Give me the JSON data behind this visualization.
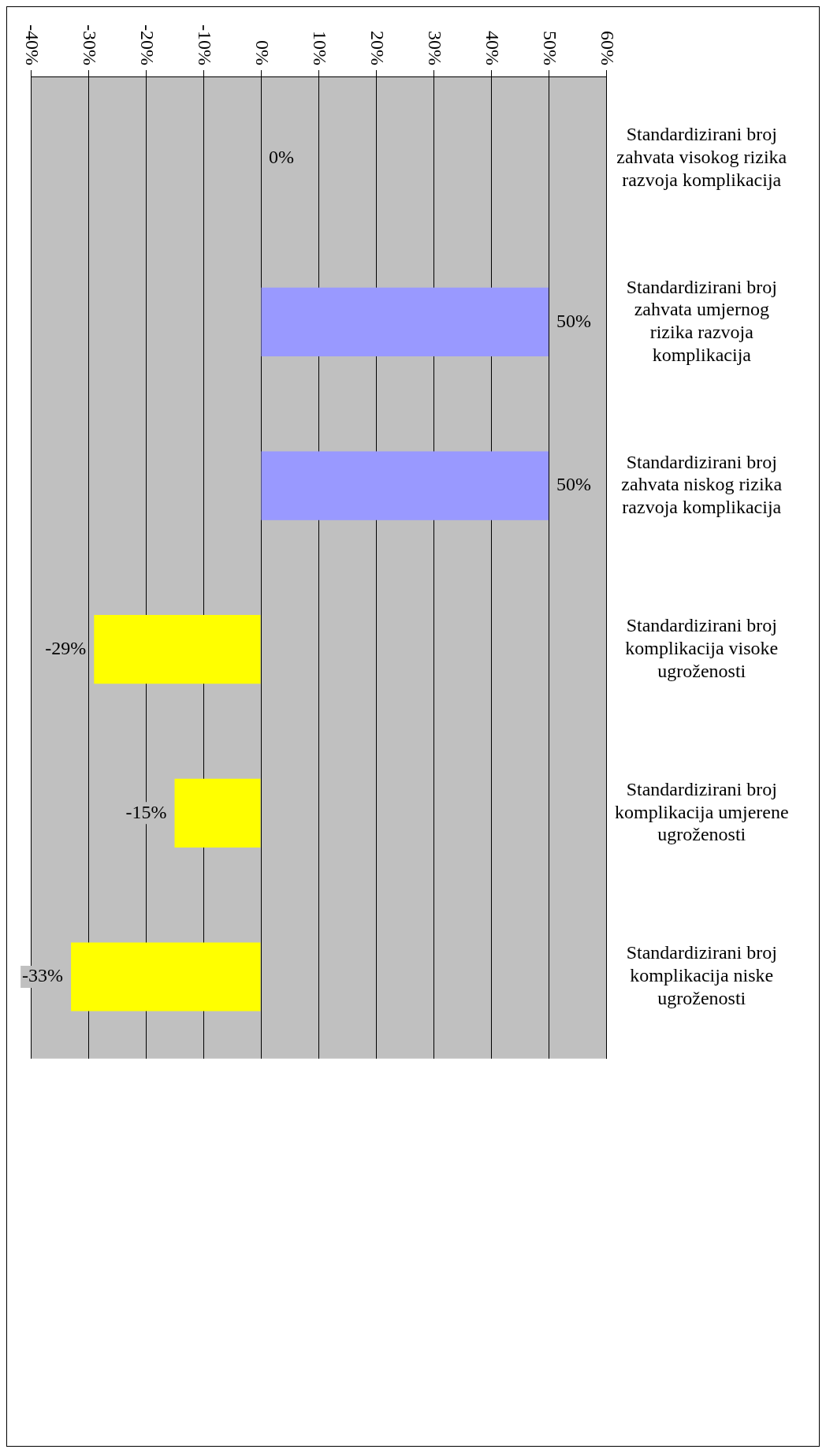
{
  "chart_data": {
    "type": "bar",
    "orientation": "horizontal",
    "categories": [
      "Standardizirani broj zahvata visokog rizika razvoja komplikacija",
      "Standardizirani broj zahvata umjernog rizika razvoja komplikacija",
      "Standardizirani broj zahvata niskog rizika razvoja komplikacija",
      "Standardizirani broj komplikacija visoke ugroženosti",
      "Standardizirani broj komplikacija umjerene ugroženosti",
      "Standardizirani broj komplikacija niske ugroženosti"
    ],
    "values": [
      0,
      50,
      50,
      -29,
      -15,
      -33
    ],
    "colors": [
      "#9999ff",
      "#9999ff",
      "#9999ff",
      "#ffff00",
      "#ffff00",
      "#ffff00"
    ],
    "value_labels": [
      "0%",
      "50%",
      "50%",
      "-29%",
      "-15%",
      "-33%"
    ],
    "xlim": [
      -40,
      60
    ],
    "xticks": [
      {
        "value": -40,
        "label": "-40%"
      },
      {
        "value": -30,
        "label": "-30%"
      },
      {
        "value": -20,
        "label": "-20%"
      },
      {
        "value": -10,
        "label": "-10%"
      },
      {
        "value": 0,
        "label": "0%"
      },
      {
        "value": 10,
        "label": "10%"
      },
      {
        "value": 20,
        "label": "20%"
      },
      {
        "value": 30,
        "label": "30%"
      },
      {
        "value": 40,
        "label": "40%"
      },
      {
        "value": 50,
        "label": "50%"
      },
      {
        "value": 60,
        "label": "60%"
      }
    ],
    "grid": "x",
    "legend": false
  }
}
